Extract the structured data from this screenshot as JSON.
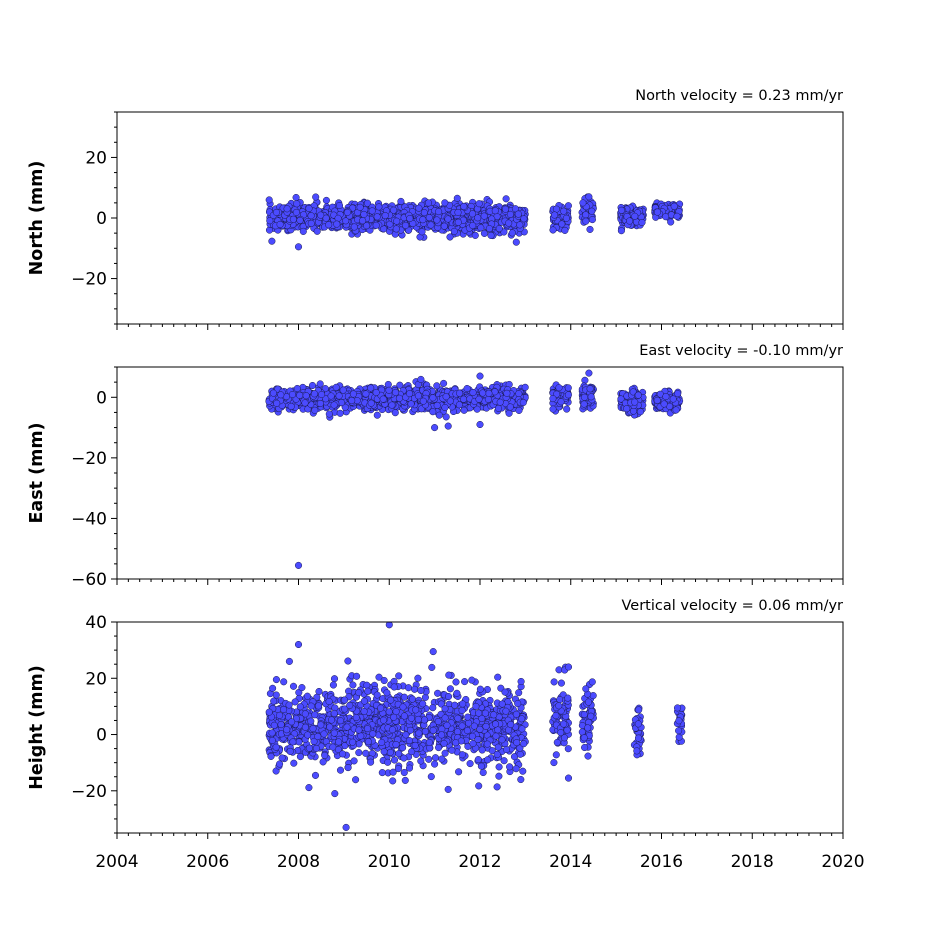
{
  "x_ticks": [
    "2004",
    "2006",
    "2008",
    "2010",
    "2012",
    "2014",
    "2016",
    "2018",
    "2020"
  ],
  "chart_data": [
    {
      "type": "scatter",
      "title": "North velocity = 0.23 mm/yr",
      "ylabel": "North (mm)",
      "xlim": [
        2004,
        2020
      ],
      "ylim": [
        -35,
        35
      ],
      "yticks": [
        -20,
        0,
        20
      ],
      "ytick_labels": [
        "−20",
        "0",
        "20"
      ],
      "marker_color": "#4b4bff",
      "segments": [
        {
          "x_start": 2007.35,
          "x_end": 2013.0,
          "mean": 0.0,
          "spread": 2.2
        },
        {
          "x_start": 2013.6,
          "x_end": 2013.95,
          "mean": 0.2,
          "spread": 1.8
        },
        {
          "x_start": 2014.25,
          "x_end": 2014.5,
          "mean": 2.0,
          "spread": 2.2
        },
        {
          "x_start": 2015.1,
          "x_end": 2015.6,
          "mean": 0.8,
          "spread": 1.5
        },
        {
          "x_start": 2015.85,
          "x_end": 2016.4,
          "mean": 2.2,
          "spread": 1.2
        }
      ],
      "outliers": [
        {
          "x": 2008.0,
          "y": -9.5
        },
        {
          "x": 2012.8,
          "y": -8.0
        },
        {
          "x": 2011.5,
          "y": 6.5
        },
        {
          "x": 2014.4,
          "y": 7.0
        }
      ]
    },
    {
      "type": "scatter",
      "title": "East velocity = -0.10 mm/yr",
      "ylabel": "East (mm)",
      "xlim": [
        2004,
        2020
      ],
      "ylim": [
        -60,
        10
      ],
      "yticks": [
        -60,
        -40,
        -20,
        0
      ],
      "ytick_labels": [
        "−60",
        "−40",
        "−20",
        "0"
      ],
      "marker_color": "#4b4bff",
      "segments": [
        {
          "x_start": 2007.35,
          "x_end": 2013.0,
          "mean": -0.5,
          "spread": 1.8
        },
        {
          "x_start": 2013.6,
          "x_end": 2013.95,
          "mean": 0.0,
          "spread": 1.8
        },
        {
          "x_start": 2014.25,
          "x_end": 2014.5,
          "mean": 0.5,
          "spread": 2.5
        },
        {
          "x_start": 2015.1,
          "x_end": 2015.6,
          "mean": -1.5,
          "spread": 1.8
        },
        {
          "x_start": 2015.85,
          "x_end": 2016.4,
          "mean": -1.5,
          "spread": 1.5
        }
      ],
      "outliers": [
        {
          "x": 2008.0,
          "y": -55.5
        },
        {
          "x": 2011.0,
          "y": -10.0
        },
        {
          "x": 2011.3,
          "y": -9.5
        },
        {
          "x": 2012.0,
          "y": 7.0
        },
        {
          "x": 2014.4,
          "y": 8.0
        },
        {
          "x": 2012.0,
          "y": -9.0
        }
      ]
    },
    {
      "type": "scatter",
      "title": "Vertical velocity = 0.06 mm/yr",
      "ylabel": "Height (mm)",
      "xlim": [
        2004,
        2020
      ],
      "ylim": [
        -35,
        40
      ],
      "yticks": [
        -20,
        0,
        20,
        40
      ],
      "ytick_labels": [
        "−20",
        "0",
        "20",
        "40"
      ],
      "marker_color": "#4b4bff",
      "segments": [
        {
          "x_start": 2007.35,
          "x_end": 2013.0,
          "mean": 3.0,
          "spread": 7.0
        },
        {
          "x_start": 2013.6,
          "x_end": 2013.95,
          "mean": 6.0,
          "spread": 6.5
        },
        {
          "x_start": 2014.25,
          "x_end": 2014.5,
          "mean": 5.0,
          "spread": 5.0
        },
        {
          "x_start": 2015.4,
          "x_end": 2015.55,
          "mean": 1.5,
          "spread": 5.0
        },
        {
          "x_start": 2016.35,
          "x_end": 2016.45,
          "mean": 5.0,
          "spread": 3.5
        }
      ],
      "outliers": [
        {
          "x": 2010.0,
          "y": 39.0
        },
        {
          "x": 2009.05,
          "y": -33.0
        },
        {
          "x": 2008.8,
          "y": -21.0
        },
        {
          "x": 2008.0,
          "y": 32.0
        },
        {
          "x": 2007.8,
          "y": 26.0
        },
        {
          "x": 2011.3,
          "y": -19.5
        },
        {
          "x": 2012.9,
          "y": -16.0
        },
        {
          "x": 2013.95,
          "y": -15.5
        },
        {
          "x": 2013.95,
          "y": 24.0
        }
      ]
    }
  ]
}
